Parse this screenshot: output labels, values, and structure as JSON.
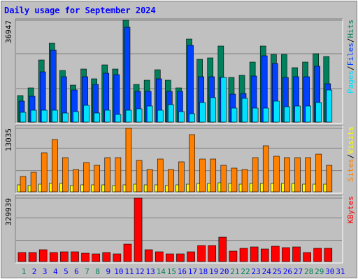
{
  "chart_data": [
    {
      "type": "bar",
      "title": "Daily usage for September 2024",
      "ylim": [
        0,
        36947
      ],
      "yticks": [
        36947
      ],
      "legend_separator": "/",
      "series": [
        {
          "name": "Hits",
          "color": "#00805c",
          "values": [
            9616,
            12400,
            22523,
            28596,
            18727,
            13412,
            19233,
            15690,
            20751,
            19233,
            36947,
            13665,
            15184,
            18980,
            15184,
            12400,
            30114,
            22776,
            23282,
            27584,
            16196,
            16955,
            21764,
            27584,
            24547,
            24547,
            19739,
            21764,
            24800,
            23788,
            0
          ]
        },
        {
          "name": "Files",
          "color": "#0040ff",
          "values": [
            7592,
            9363,
            18220,
            26066,
            16449,
            11641,
            16449,
            13665,
            17714,
            17208,
            34416,
            11135,
            11135,
            15690,
            11135,
            11135,
            27837,
            16449,
            16449,
            16196,
            10122,
            10375,
            16702,
            24040,
            21257,
            16196,
            16449,
            16449,
            20245,
            13918,
            0
          ]
        },
        {
          "name": "Pages",
          "color": "#00e0ff",
          "values": [
            3543,
            4302,
            4302,
            4302,
            3290,
            3796,
            6073,
            3290,
            4302,
            2784,
            4302,
            4808,
            5820,
            4302,
            6327,
            3796,
            3037,
            7086,
            8857,
            16196,
            5061,
            8604,
            5061,
            5061,
            7592,
            5567,
            5820,
            5820,
            7086,
            11641,
            0
          ]
        }
      ]
    },
    {
      "type": "bar",
      "ylim": [
        0,
        13035
      ],
      "yticks": [
        13035
      ],
      "legend_separator": "/",
      "series": [
        {
          "name": "Visits",
          "color": "#ffff00",
          "values": [
            1432,
            1289,
            1576,
            1719,
            1719,
            1289,
            1432,
            1432,
            1432,
            1289,
            1432,
            1576,
            1432,
            1432,
            1289,
            1432,
            1576,
            1719,
            1719,
            1862,
            1719,
            1576,
            1719,
            1719,
            1719,
            1719,
            1719,
            1576,
            1576,
            1576,
            0
          ]
        },
        {
          "name": "Sites",
          "color": "#ff8000",
          "values": [
            3151,
            4011,
            8022,
            10743,
            7019,
            4584,
            6016,
            5443,
            7019,
            7019,
            13035,
            6446,
            4584,
            6732,
            4584,
            6159,
            11746,
            6732,
            6732,
            5443,
            4870,
            4584,
            7019,
            9454,
            7305,
            7019,
            7019,
            7019,
            7735,
            5443,
            0
          ]
        }
      ]
    },
    {
      "type": "bar",
      "ylim": [
        0,
        329939
      ],
      "yticks": [
        329939
      ],
      "series": [
        {
          "name": "KBytes",
          "color": "#ff0000",
          "values": [
            47134,
            47134,
            61638,
            47134,
            50760,
            50760,
            43508,
            39883,
            47134,
            39883,
            90643,
            329939,
            61638,
            50760,
            39883,
            39883,
            50760,
            83390,
            83390,
            126900,
            54386,
            68889,
            76141,
            65264,
            79764,
            72515,
            76141,
            47134,
            68889,
            68889,
            0
          ]
        }
      ],
      "categories": [
        "1",
        "2",
        "3",
        "4",
        "5",
        "6",
        "7",
        "8",
        "9",
        "10",
        "11",
        "12",
        "13",
        "14",
        "15",
        "16",
        "17",
        "18",
        "19",
        "20",
        "21",
        "22",
        "23",
        "24",
        "25",
        "26",
        "27",
        "28",
        "29",
        "30",
        "31"
      ],
      "category_colors": [
        "#00805c",
        "#0000ff",
        "#0000ff",
        "#0000ff",
        "#0000ff",
        "#0000ff",
        "#00805c",
        "#00805c",
        "#0000ff",
        "#0000ff",
        "#0000ff",
        "#0000ff",
        "#0000ff",
        "#00805c",
        "#00805c",
        "#0000ff",
        "#0000ff",
        "#0000ff",
        "#0000ff",
        "#0000ff",
        "#00805c",
        "#00805c",
        "#0000ff",
        "#0000ff",
        "#0000ff",
        "#0000ff",
        "#0000ff",
        "#00805c",
        "#00805c",
        "#0000ff",
        "#0000ff"
      ]
    }
  ]
}
